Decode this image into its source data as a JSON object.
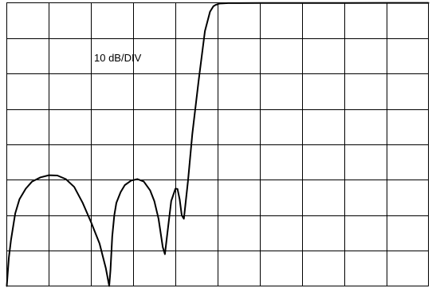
{
  "chart_data": {
    "type": "line",
    "title": "",
    "xlabel": "",
    "ylabel": "",
    "scale_label": "10 dB/DIV",
    "x_divisions": 10,
    "y_divisions": 8,
    "xlim": [
      0,
      10
    ],
    "ylim": [
      -80,
      0
    ],
    "grid": true,
    "series": [
      {
        "x": [
          0.0,
          0.05,
          0.1,
          0.2,
          0.3,
          0.45,
          0.6,
          0.8,
          1.0,
          1.2,
          1.4,
          1.6,
          1.8,
          2.0,
          2.2,
          2.35,
          2.43,
          2.46,
          2.5,
          2.55,
          2.6,
          2.7,
          2.8,
          2.95,
          3.1,
          3.25,
          3.4,
          3.5,
          3.6,
          3.7,
          3.75,
          3.8,
          3.9,
          4.0,
          4.05,
          4.1,
          4.15,
          4.2,
          4.3,
          4.4,
          4.55,
          4.7,
          4.82,
          4.9,
          4.95,
          5.0,
          5.02,
          5.06,
          5.12,
          5.25,
          5.5,
          6.0,
          7.0,
          8.0,
          9.0,
          10.0
        ],
        "y": [
          -80.0,
          -72.0,
          -67.0,
          -59.5,
          -55.5,
          -52.5,
          -50.5,
          -49.3,
          -48.7,
          -48.8,
          -49.8,
          -52.0,
          -56.5,
          -62.0,
          -68.0,
          -75.0,
          -80.0,
          -75.5,
          -66.0,
          -60.0,
          -56.5,
          -53.5,
          -51.5,
          -50.2,
          -49.8,
          -50.5,
          -53.0,
          -56.0,
          -61.0,
          -69.0,
          -71.0,
          -66.0,
          -56.0,
          -52.5,
          -52.6,
          -55.5,
          -60.0,
          -61.0,
          -50.0,
          -37.0,
          -22.0,
          -8.0,
          -2.5,
          -1.0,
          -0.6,
          -0.4,
          -0.3,
          -0.2,
          -0.15,
          -0.1,
          -0.08,
          -0.06,
          -0.05,
          -0.04,
          -0.03,
          -0.03
        ]
      }
    ]
  }
}
